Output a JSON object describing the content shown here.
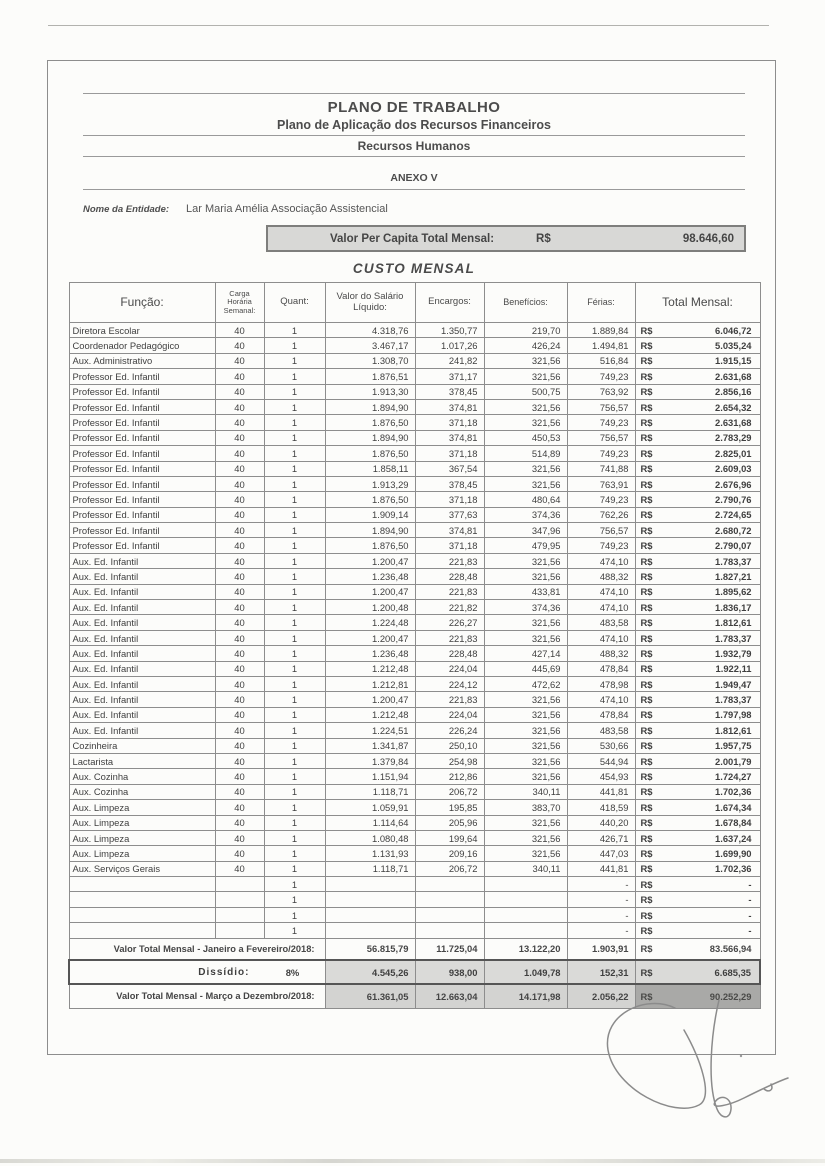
{
  "document": {
    "title": "PLANO DE TRABALHO",
    "subtitle1": "Plano de Aplicação dos Recursos Financeiros",
    "subtitle2": "Recursos Humanos",
    "annex": "ANEXO V",
    "entity_label": "Nome da Entidade:",
    "entity_name": "Lar Maria Amélia Associação Assistencial",
    "per_capita_label": "Valor Per Capita Total Mensal:",
    "per_capita_currency": "R$",
    "per_capita_value": "98.646,60",
    "section_title": "CUSTO MENSAL"
  },
  "table": {
    "headers": {
      "funcao": "Função:",
      "carga": "Carga Horária Semanal:",
      "quant": "Quant:",
      "salario": "Valor do Salário Líquido:",
      "encargos": "Encargos:",
      "beneficios": "Benefícios:",
      "ferias": "Férias:",
      "total": "Total Mensal:"
    },
    "currency": "R$",
    "rows": [
      {
        "funcao": "Diretora Escolar",
        "carga": "40",
        "quant": "1",
        "salario": "4.318,76",
        "encargos": "1.350,77",
        "beneficios": "219,70",
        "ferias": "1.889,84",
        "currency": "R$",
        "total": "6.046,72"
      },
      {
        "funcao": "Coordenador Pedagógico",
        "carga": "40",
        "quant": "1",
        "salario": "3.467,17",
        "encargos": "1.017,26",
        "beneficios": "426,24",
        "ferias": "1.494,81",
        "currency": "R$",
        "total": "5.035,24"
      },
      {
        "funcao": "Aux. Administrativo",
        "carga": "40",
        "quant": "1",
        "salario": "1.308,70",
        "encargos": "241,82",
        "beneficios": "321,56",
        "ferias": "516,84",
        "currency": "R$",
        "total": "1.915,15"
      },
      {
        "funcao": "Professor Ed. Infantil",
        "carga": "40",
        "quant": "1",
        "salario": "1.876,51",
        "encargos": "371,17",
        "beneficios": "321,56",
        "ferias": "749,23",
        "currency": "R$",
        "total": "2.631,68"
      },
      {
        "funcao": "Professor Ed. Infantil",
        "carga": "40",
        "quant": "1",
        "salario": "1.913,30",
        "encargos": "378,45",
        "beneficios": "500,75",
        "ferias": "763,92",
        "currency": "R$",
        "total": "2.856,16"
      },
      {
        "funcao": "Professor Ed. Infantil",
        "carga": "40",
        "quant": "1",
        "salario": "1.894,90",
        "encargos": "374,81",
        "beneficios": "321,56",
        "ferias": "756,57",
        "currency": "R$",
        "total": "2.654,32"
      },
      {
        "funcao": "Professor Ed. Infantil",
        "carga": "40",
        "quant": "1",
        "salario": "1.876,50",
        "encargos": "371,18",
        "beneficios": "321,56",
        "ferias": "749,23",
        "currency": "R$",
        "total": "2.631,68"
      },
      {
        "funcao": "Professor Ed. Infantil",
        "carga": "40",
        "quant": "1",
        "salario": "1.894,90",
        "encargos": "374,81",
        "beneficios": "450,53",
        "ferias": "756,57",
        "currency": "R$",
        "total": "2.783,29"
      },
      {
        "funcao": "Professor Ed. Infantil",
        "carga": "40",
        "quant": "1",
        "salario": "1.876,50",
        "encargos": "371,18",
        "beneficios": "514,89",
        "ferias": "749,23",
        "currency": "R$",
        "total": "2.825,01"
      },
      {
        "funcao": "Professor Ed. Infantil",
        "carga": "40",
        "quant": "1",
        "salario": "1.858,11",
        "encargos": "367,54",
        "beneficios": "321,56",
        "ferias": "741,88",
        "currency": "R$",
        "total": "2.609,03"
      },
      {
        "funcao": "Professor Ed. Infantil",
        "carga": "40",
        "quant": "1",
        "salario": "1.913,29",
        "encargos": "378,45",
        "beneficios": "321,56",
        "ferias": "763,91",
        "currency": "R$",
        "total": "2.676,96"
      },
      {
        "funcao": "Professor Ed. Infantil",
        "carga": "40",
        "quant": "1",
        "salario": "1.876,50",
        "encargos": "371,18",
        "beneficios": "480,64",
        "ferias": "749,23",
        "currency": "R$",
        "total": "2.790,76"
      },
      {
        "funcao": "Professor Ed. Infantil",
        "carga": "40",
        "quant": "1",
        "salario": "1.909,14",
        "encargos": "377,63",
        "beneficios": "374,36",
        "ferias": "762,26",
        "currency": "R$",
        "total": "2.724,65"
      },
      {
        "funcao": "Professor Ed. Infantil",
        "carga": "40",
        "quant": "1",
        "salario": "1.894,90",
        "encargos": "374,81",
        "beneficios": "347,96",
        "ferias": "756,57",
        "currency": "R$",
        "total": "2.680,72"
      },
      {
        "funcao": "Professor Ed. Infantil",
        "carga": "40",
        "quant": "1",
        "salario": "1.876,50",
        "encargos": "371,18",
        "beneficios": "479,95",
        "ferias": "749,23",
        "currency": "R$",
        "total": "2.790,07"
      },
      {
        "funcao": "Aux. Ed. Infantil",
        "carga": "40",
        "quant": "1",
        "salario": "1.200,47",
        "encargos": "221,83",
        "beneficios": "321,56",
        "ferias": "474,10",
        "currency": "R$",
        "total": "1.783,37"
      },
      {
        "funcao": "Aux. Ed. Infantil",
        "carga": "40",
        "quant": "1",
        "salario": "1.236,48",
        "encargos": "228,48",
        "beneficios": "321,56",
        "ferias": "488,32",
        "currency": "R$",
        "total": "1.827,21"
      },
      {
        "funcao": "Aux. Ed. Infantil",
        "carga": "40",
        "quant": "1",
        "salario": "1.200,47",
        "encargos": "221,83",
        "beneficios": "433,81",
        "ferias": "474,10",
        "currency": "R$",
        "total": "1.895,62"
      },
      {
        "funcao": "Aux. Ed. Infantil",
        "carga": "40",
        "quant": "1",
        "salario": "1.200,48",
        "encargos": "221,82",
        "beneficios": "374,36",
        "ferias": "474,10",
        "currency": "R$",
        "total": "1.836,17"
      },
      {
        "funcao": "Aux. Ed. Infantil",
        "carga": "40",
        "quant": "1",
        "salario": "1.224,48",
        "encargos": "226,27",
        "beneficios": "321,56",
        "ferias": "483,58",
        "currency": "R$",
        "total": "1.812,61"
      },
      {
        "funcao": "Aux. Ed. Infantil",
        "carga": "40",
        "quant": "1",
        "salario": "1.200,47",
        "encargos": "221,83",
        "beneficios": "321,56",
        "ferias": "474,10",
        "currency": "R$",
        "total": "1.783,37"
      },
      {
        "funcao": "Aux. Ed. Infantil",
        "carga": "40",
        "quant": "1",
        "salario": "1.236,48",
        "encargos": "228,48",
        "beneficios": "427,14",
        "ferias": "488,32",
        "currency": "R$",
        "total": "1.932,79"
      },
      {
        "funcao": "Aux. Ed. Infantil",
        "carga": "40",
        "quant": "1",
        "salario": "1.212,48",
        "encargos": "224,04",
        "beneficios": "445,69",
        "ferias": "478,84",
        "currency": "R$",
        "total": "1.922,11"
      },
      {
        "funcao": "Aux. Ed. Infantil",
        "carga": "40",
        "quant": "1",
        "salario": "1.212,81",
        "encargos": "224,12",
        "beneficios": "472,62",
        "ferias": "478,98",
        "currency": "R$",
        "total": "1.949,47"
      },
      {
        "funcao": "Aux. Ed. Infantil",
        "carga": "40",
        "quant": "1",
        "salario": "1.200,47",
        "encargos": "221,83",
        "beneficios": "321,56",
        "ferias": "474,10",
        "currency": "R$",
        "total": "1.783,37"
      },
      {
        "funcao": "Aux. Ed. Infantil",
        "carga": "40",
        "quant": "1",
        "salario": "1.212,48",
        "encargos": "224,04",
        "beneficios": "321,56",
        "ferias": "478,84",
        "currency": "R$",
        "total": "1.797,98"
      },
      {
        "funcao": "Aux. Ed. Infantil",
        "carga": "40",
        "quant": "1",
        "salario": "1.224,51",
        "encargos": "226,24",
        "beneficios": "321,56",
        "ferias": "483,58",
        "currency": "R$",
        "total": "1.812,61"
      },
      {
        "funcao": "Cozinheira",
        "carga": "40",
        "quant": "1",
        "salario": "1.341,87",
        "encargos": "250,10",
        "beneficios": "321,56",
        "ferias": "530,66",
        "currency": "R$",
        "total": "1.957,75"
      },
      {
        "funcao": "Lactarista",
        "carga": "40",
        "quant": "1",
        "salario": "1.379,84",
        "encargos": "254,98",
        "beneficios": "321,56",
        "ferias": "544,94",
        "currency": "R$",
        "total": "2.001,79"
      },
      {
        "funcao": "Aux. Cozinha",
        "carga": "40",
        "quant": "1",
        "salario": "1.151,94",
        "encargos": "212,86",
        "beneficios": "321,56",
        "ferias": "454,93",
        "currency": "R$",
        "total": "1.724,27"
      },
      {
        "funcao": "Aux. Cozinha",
        "carga": "40",
        "quant": "1",
        "salario": "1.118,71",
        "encargos": "206,72",
        "beneficios": "340,11",
        "ferias": "441,81",
        "currency": "R$",
        "total": "1.702,36"
      },
      {
        "funcao": "Aux. Limpeza",
        "carga": "40",
        "quant": "1",
        "salario": "1.059,91",
        "encargos": "195,85",
        "beneficios": "383,70",
        "ferias": "418,59",
        "currency": "R$",
        "total": "1.674,34"
      },
      {
        "funcao": "Aux. Limpeza",
        "carga": "40",
        "quant": "1",
        "salario": "1.114,64",
        "encargos": "205,96",
        "beneficios": "321,56",
        "ferias": "440,20",
        "currency": "R$",
        "total": "1.678,84"
      },
      {
        "funcao": "Aux. Limpeza",
        "carga": "40",
        "quant": "1",
        "salario": "1.080,48",
        "encargos": "199,64",
        "beneficios": "321,56",
        "ferias": "426,71",
        "currency": "R$",
        "total": "1.637,24"
      },
      {
        "funcao": "Aux. Limpeza",
        "carga": "40",
        "quant": "1",
        "salario": "1.131,93",
        "encargos": "209,16",
        "beneficios": "321,56",
        "ferias": "447,03",
        "currency": "R$",
        "total": "1.699,90"
      },
      {
        "funcao": "Aux. Serviços Gerais",
        "carga": "40",
        "quant": "1",
        "salario": "1.118,71",
        "encargos": "206,72",
        "beneficios": "340,11",
        "ferias": "441,81",
        "currency": "R$",
        "total": "1.702,36"
      }
    ],
    "empty_rows": [
      {
        "funcao": "",
        "carga": "",
        "quant": "1",
        "salario": "",
        "encargos": "",
        "beneficios": "",
        "ferias": "-",
        "currency": "R$",
        "total": "-"
      },
      {
        "funcao": "",
        "carga": "",
        "quant": "1",
        "salario": "",
        "encargos": "",
        "beneficios": "",
        "ferias": "-",
        "currency": "R$",
        "total": "-"
      },
      {
        "funcao": "",
        "carga": "",
        "quant": "1",
        "salario": "",
        "encargos": "",
        "beneficios": "",
        "ferias": "-",
        "currency": "R$",
        "total": "-"
      },
      {
        "funcao": "",
        "carga": "",
        "quant": "1",
        "salario": "",
        "encargos": "",
        "beneficios": "",
        "ferias": "-",
        "currency": "R$",
        "total": "-"
      }
    ],
    "footer": {
      "jan": {
        "label": "Valor Total Mensal - Janeiro a Fevereiro/2018:",
        "salario": "56.815,79",
        "encargos": "11.725,04",
        "beneficios": "13.122,20",
        "ferias": "1.903,91",
        "currency": "R$",
        "total": "83.566,94"
      },
      "dissidio": {
        "label": "Dissídio:",
        "percent": "8%",
        "salario": "4.545,26",
        "encargos": "938,00",
        "beneficios": "1.049,78",
        "ferias": "152,31",
        "currency": "R$",
        "total": "6.685,35"
      },
      "mar": {
        "label": "Valor Total Mensal - Março a Dezembro/2018:",
        "salario": "61.361,05",
        "encargos": "12.663,04",
        "beneficios": "14.171,98",
        "ferias": "2.056,22",
        "currency": "R$",
        "total": "90.252,29"
      }
    }
  },
  "colors": {
    "shade_light": "#d9d9d7",
    "shade_medium": "#d3d3d1",
    "shade_dark": "#a9a9a7",
    "border_gray": "#8d8d8d"
  }
}
